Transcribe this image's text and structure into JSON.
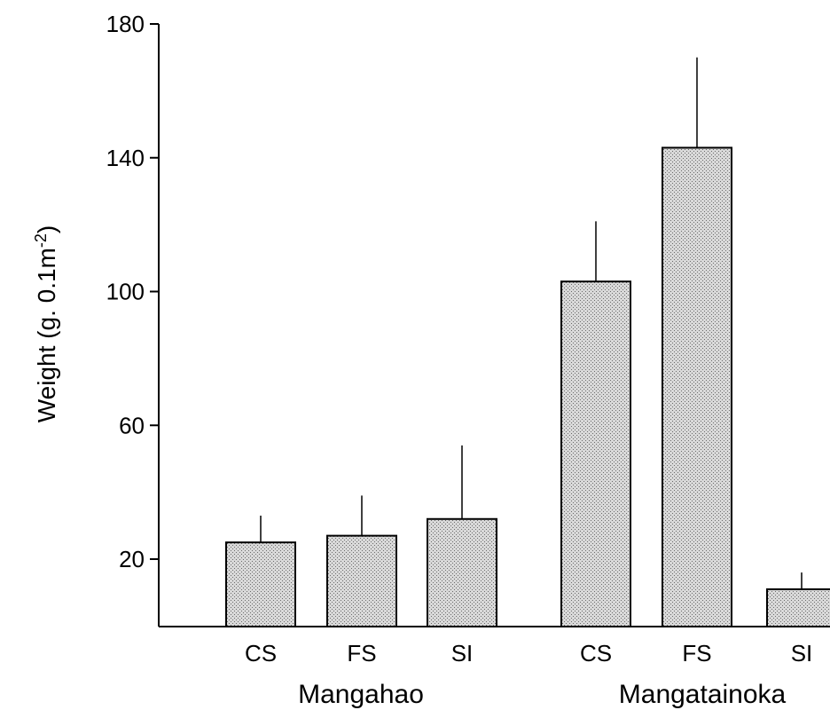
{
  "chart_data": {
    "type": "bar",
    "ylabel": "Weight (g. 0.1m",
    "ylabel_sup": "-2",
    "ylabel_close": ")",
    "ylim": [
      2,
      180
    ],
    "yticks": [
      20,
      60,
      100,
      140,
      180
    ],
    "grid": false,
    "legend": "none",
    "bar_fill": "#cfcfcf",
    "groups": [
      {
        "name": "Mangahao",
        "categories": [
          "CS",
          "FS",
          "SI"
        ],
        "values": [
          25,
          27,
          32
        ],
        "error_upper": [
          33,
          39,
          54
        ]
      },
      {
        "name": "Mangatainoka",
        "categories": [
          "CS",
          "FS",
          "SI"
        ],
        "values": [
          103,
          143,
          11
        ],
        "error_upper": [
          121,
          170,
          16
        ]
      }
    ]
  }
}
